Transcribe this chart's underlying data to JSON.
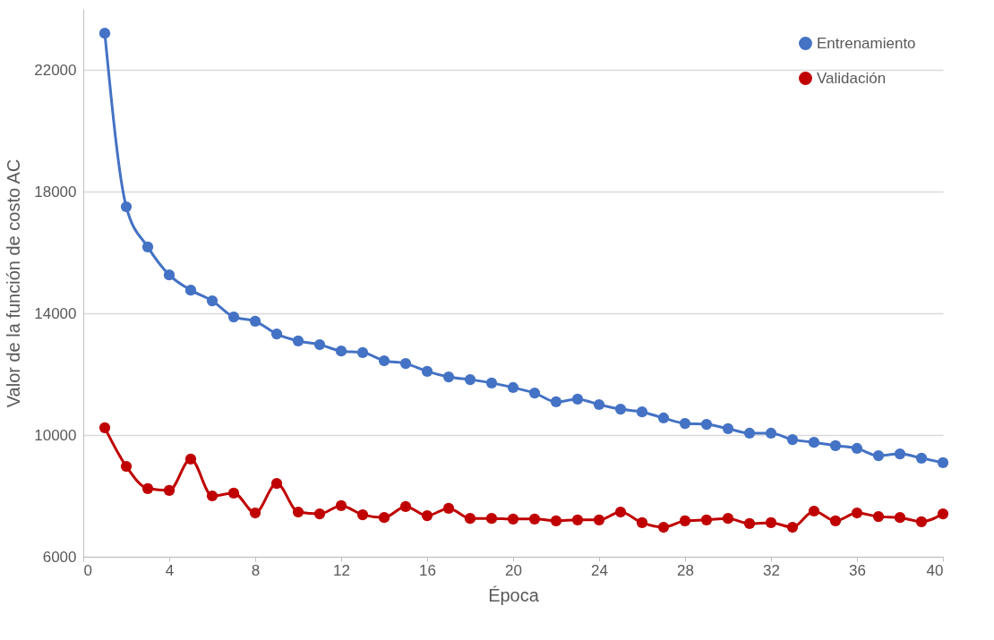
{
  "chart_data": {
    "type": "line",
    "xlabel": "Época",
    "ylabel": "Valor de la función de costo AC",
    "x": [
      1,
      2,
      3,
      4,
      5,
      6,
      7,
      8,
      9,
      10,
      11,
      12,
      13,
      14,
      15,
      16,
      17,
      18,
      19,
      20,
      21,
      22,
      23,
      24,
      25,
      26,
      27,
      28,
      29,
      30,
      31,
      32,
      33,
      34,
      35,
      36,
      37,
      38,
      39,
      40
    ],
    "series": [
      {
        "name": "Entrenamiento",
        "color": "#4472c4",
        "values": [
          23200,
          17500,
          16180,
          15260,
          14760,
          14410,
          13880,
          13740,
          13320,
          13090,
          12970,
          12760,
          12710,
          12440,
          12350,
          12090,
          11910,
          11820,
          11710,
          11560,
          11380,
          11090,
          11180,
          11000,
          10850,
          10760,
          10560,
          10380,
          10350,
          10210,
          10060,
          10060,
          9850,
          9760,
          9650,
          9560,
          9320,
          9380,
          9240,
          9090
        ]
      },
      {
        "name": "Validación",
        "color": "#c00000",
        "values": [
          10240,
          8970,
          8240,
          8180,
          9210,
          8000,
          8090,
          7440,
          8410,
          7470,
          7410,
          7680,
          7380,
          7290,
          7650,
          7350,
          7590,
          7260,
          7260,
          7240,
          7240,
          7180,
          7210,
          7210,
          7470,
          7120,
          6970,
          7180,
          7210,
          7260,
          7090,
          7120,
          6970,
          7500,
          7180,
          7440,
          7320,
          7290,
          7150,
          7410
        ]
      }
    ],
    "xlim": [
      0,
      40
    ],
    "xticks": [
      0,
      4,
      8,
      12,
      16,
      20,
      24,
      28,
      32,
      36,
      40
    ],
    "ylim": [
      6000,
      24000
    ],
    "yticks": [
      6000,
      10000,
      14000,
      18000,
      22000
    ],
    "grid": "y",
    "legend": "top right",
    "marker": "circle",
    "line_style": "solid"
  }
}
